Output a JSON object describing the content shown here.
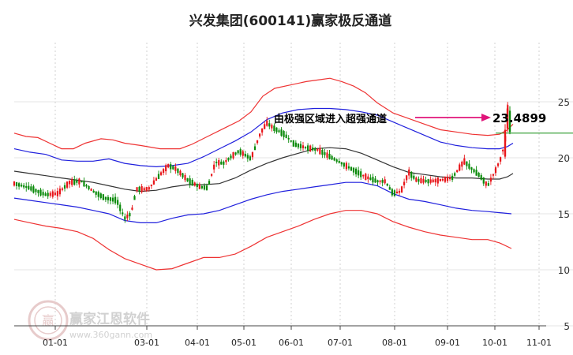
{
  "chart_data": {
    "type": "candlestick",
    "title": "兴发集团(600141)赢家极反通道",
    "x_ticks": [
      "01-01",
      "03-01",
      "04-01",
      "05-01",
      "06-01",
      "07-01",
      "08-01",
      "09-01",
      "10-01",
      "11-01"
    ],
    "y_ticks": [
      25,
      20,
      15,
      10,
      5
    ],
    "ylim": [
      5,
      27.5
    ],
    "grid": true,
    "annotation": {
      "text": "由极强区域进入超强通道",
      "value_label": "23.4899",
      "value": 23.49
    },
    "colors": {
      "up": "#e8161a",
      "down": "#0a8a0a",
      "band": "#ee3333",
      "channel": "#2020dd",
      "ma": "#333333",
      "arrow": "#e0147a"
    },
    "series": {
      "upper_band": [
        [
          0,
          22.2
        ],
        [
          15,
          21.9
        ],
        [
          30,
          21.8
        ],
        [
          45,
          21.3
        ],
        [
          60,
          20.8
        ],
        [
          75,
          20.8
        ],
        [
          90,
          21.3
        ],
        [
          110,
          21.7
        ],
        [
          125,
          21.6
        ],
        [
          140,
          21.3
        ],
        [
          160,
          21.1
        ],
        [
          185,
          20.8
        ],
        [
          210,
          20.8
        ],
        [
          225,
          21.2
        ],
        [
          245,
          21.9
        ],
        [
          265,
          22.6
        ],
        [
          285,
          23.3
        ],
        [
          300,
          24.1
        ],
        [
          315,
          25.5
        ],
        [
          330,
          26.2
        ],
        [
          350,
          26.5
        ],
        [
          370,
          26.8
        ],
        [
          390,
          27.0
        ],
        [
          400,
          27.1
        ],
        [
          415,
          26.8
        ],
        [
          430,
          26.4
        ],
        [
          445,
          25.8
        ],
        [
          460,
          24.9
        ],
        [
          480,
          24.0
        ],
        [
          500,
          23.5
        ],
        [
          520,
          23.0
        ],
        [
          540,
          22.5
        ],
        [
          560,
          22.3
        ],
        [
          580,
          22.1
        ],
        [
          600,
          22.0
        ],
        [
          615,
          22.1
        ],
        [
          625,
          22.5
        ],
        [
          632,
          23.0
        ]
      ],
      "channel_upper": [
        [
          0,
          20.8
        ],
        [
          20,
          20.5
        ],
        [
          40,
          20.3
        ],
        [
          60,
          19.8
        ],
        [
          80,
          19.7
        ],
        [
          100,
          19.7
        ],
        [
          120,
          19.9
        ],
        [
          140,
          19.5
        ],
        [
          160,
          19.3
        ],
        [
          180,
          19.2
        ],
        [
          200,
          19.3
        ],
        [
          220,
          19.5
        ],
        [
          240,
          20.1
        ],
        [
          260,
          20.8
        ],
        [
          280,
          21.5
        ],
        [
          300,
          22.3
        ],
        [
          320,
          23.4
        ],
        [
          340,
          24.0
        ],
        [
          360,
          24.3
        ],
        [
          380,
          24.4
        ],
        [
          400,
          24.4
        ],
        [
          420,
          24.3
        ],
        [
          440,
          24.1
        ],
        [
          460,
          23.8
        ],
        [
          480,
          23.2
        ],
        [
          500,
          22.6
        ],
        [
          520,
          22.0
        ],
        [
          540,
          21.4
        ],
        [
          560,
          21.1
        ],
        [
          580,
          20.9
        ],
        [
          600,
          20.8
        ],
        [
          615,
          20.8
        ],
        [
          625,
          21.0
        ],
        [
          632,
          21.3
        ]
      ],
      "ma": [
        [
          0,
          18.8
        ],
        [
          20,
          18.6
        ],
        [
          40,
          18.4
        ],
        [
          60,
          18.2
        ],
        [
          80,
          18.0
        ],
        [
          100,
          17.8
        ],
        [
          120,
          17.5
        ],
        [
          140,
          17.2
        ],
        [
          160,
          17.0
        ],
        [
          180,
          17.1
        ],
        [
          200,
          17.4
        ],
        [
          220,
          17.6
        ],
        [
          240,
          17.6
        ],
        [
          260,
          17.7
        ],
        [
          280,
          18.2
        ],
        [
          300,
          18.9
        ],
        [
          320,
          19.5
        ],
        [
          340,
          20.0
        ],
        [
          360,
          20.4
        ],
        [
          380,
          20.8
        ],
        [
          400,
          20.9
        ],
        [
          420,
          20.8
        ],
        [
          440,
          20.4
        ],
        [
          460,
          19.8
        ],
        [
          480,
          19.2
        ],
        [
          500,
          18.7
        ],
        [
          520,
          18.5
        ],
        [
          540,
          18.3
        ],
        [
          560,
          18.2
        ],
        [
          580,
          18.2
        ],
        [
          600,
          18.1
        ],
        [
          615,
          18.1
        ],
        [
          625,
          18.3
        ],
        [
          632,
          18.6
        ]
      ],
      "channel_lower": [
        [
          0,
          16.4
        ],
        [
          20,
          16.2
        ],
        [
          40,
          16.0
        ],
        [
          60,
          15.8
        ],
        [
          80,
          15.6
        ],
        [
          100,
          15.3
        ],
        [
          120,
          15.0
        ],
        [
          140,
          14.4
        ],
        [
          160,
          14.2
        ],
        [
          180,
          14.2
        ],
        [
          200,
          14.6
        ],
        [
          220,
          14.9
        ],
        [
          240,
          15.0
        ],
        [
          260,
          15.3
        ],
        [
          280,
          15.8
        ],
        [
          300,
          16.3
        ],
        [
          320,
          16.7
        ],
        [
          340,
          17.0
        ],
        [
          360,
          17.2
        ],
        [
          380,
          17.4
        ],
        [
          400,
          17.6
        ],
        [
          420,
          17.8
        ],
        [
          440,
          17.8
        ],
        [
          460,
          17.5
        ],
        [
          480,
          16.8
        ],
        [
          500,
          16.3
        ],
        [
          520,
          16.1
        ],
        [
          540,
          15.8
        ],
        [
          560,
          15.5
        ],
        [
          580,
          15.3
        ],
        [
          600,
          15.2
        ],
        [
          615,
          15.1
        ],
        [
          630,
          15.0
        ]
      ],
      "lower_band": [
        [
          0,
          14.5
        ],
        [
          20,
          14.2
        ],
        [
          40,
          13.9
        ],
        [
          60,
          13.7
        ],
        [
          80,
          13.4
        ],
        [
          100,
          12.8
        ],
        [
          120,
          11.8
        ],
        [
          140,
          11.0
        ],
        [
          160,
          10.5
        ],
        [
          180,
          10.0
        ],
        [
          200,
          10.1
        ],
        [
          220,
          10.6
        ],
        [
          240,
          11.1
        ],
        [
          260,
          11.1
        ],
        [
          280,
          11.4
        ],
        [
          300,
          12.1
        ],
        [
          320,
          12.9
        ],
        [
          340,
          13.4
        ],
        [
          360,
          13.9
        ],
        [
          380,
          14.5
        ],
        [
          400,
          15.0
        ],
        [
          420,
          15.3
        ],
        [
          440,
          15.3
        ],
        [
          460,
          15.0
        ],
        [
          480,
          14.3
        ],
        [
          500,
          13.8
        ],
        [
          520,
          13.4
        ],
        [
          540,
          13.1
        ],
        [
          560,
          12.9
        ],
        [
          580,
          12.7
        ],
        [
          600,
          12.7
        ],
        [
          615,
          12.4
        ],
        [
          630,
          11.9
        ]
      ]
    },
    "price_path": [
      [
        0,
        17.7
      ],
      [
        20,
        17.3
      ],
      [
        40,
        16.7
      ],
      [
        55,
        16.8
      ],
      [
        70,
        17.8
      ],
      [
        85,
        17.9
      ],
      [
        100,
        17.0
      ],
      [
        115,
        16.4
      ],
      [
        130,
        16.2
      ],
      [
        140,
        14.6
      ],
      [
        148,
        15.0
      ],
      [
        155,
        17.2
      ],
      [
        170,
        17.2
      ],
      [
        185,
        18.5
      ],
      [
        195,
        19.3
      ],
      [
        205,
        19.0
      ],
      [
        220,
        18.0
      ],
      [
        235,
        17.4
      ],
      [
        245,
        17.3
      ],
      [
        255,
        19.6
      ],
      [
        265,
        19.5
      ],
      [
        275,
        20.1
      ],
      [
        285,
        20.6
      ],
      [
        300,
        19.9
      ],
      [
        312,
        22.2
      ],
      [
        320,
        23.1
      ],
      [
        330,
        22.6
      ],
      [
        342,
        22.1
      ],
      [
        355,
        21.2
      ],
      [
        370,
        20.9
      ],
      [
        385,
        20.7
      ],
      [
        400,
        20.1
      ],
      [
        415,
        19.5
      ],
      [
        430,
        18.9
      ],
      [
        445,
        18.3
      ],
      [
        460,
        17.9
      ],
      [
        470,
        17.9
      ],
      [
        480,
        16.8
      ],
      [
        490,
        17.0
      ],
      [
        500,
        18.7
      ],
      [
        510,
        18.0
      ],
      [
        525,
        17.9
      ],
      [
        540,
        18.0
      ],
      [
        555,
        18.2
      ],
      [
        562,
        18.9
      ],
      [
        570,
        19.7
      ],
      [
        580,
        19.0
      ],
      [
        590,
        18.4
      ],
      [
        600,
        17.5
      ],
      [
        610,
        18.9
      ],
      [
        617,
        20.0
      ],
      [
        622,
        21.5
      ],
      [
        625,
        24.5
      ],
      [
        628,
        23.8
      ]
    ],
    "last_price": [
      [
        628,
        22.2
      ],
      [
        726,
        22.2
      ]
    ]
  },
  "watermark": {
    "brand": "赢家江恩软件",
    "url": "www.360gann.com",
    "seal": "赢"
  }
}
